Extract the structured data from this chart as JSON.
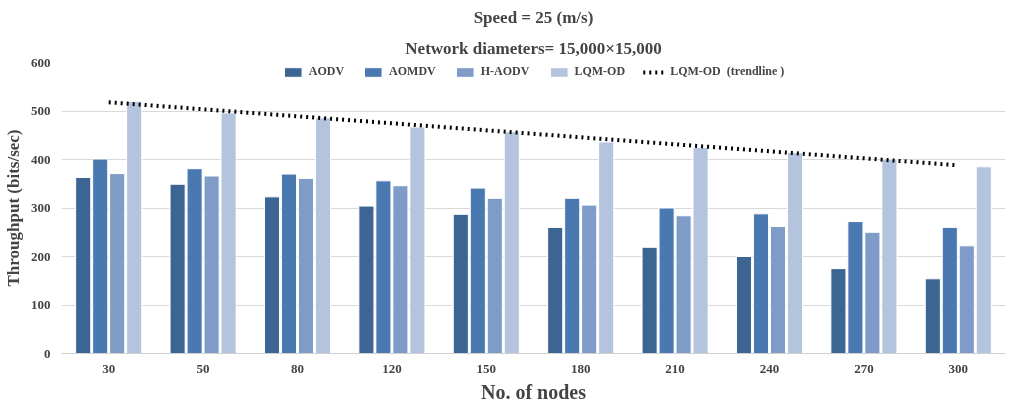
{
  "chart_data": {
    "type": "bar",
    "title": "Speed = 25 (m/s)",
    "subtitle": "Network diameters= 15,000×15,000",
    "xlabel": "No. of nodes",
    "ylabel": "Throughput (bits/sec)",
    "categories": [
      "30",
      "50",
      "80",
      "120",
      "150",
      "180",
      "210",
      "240",
      "270",
      "300"
    ],
    "series": [
      {
        "name": "AODV",
        "color": "#3d6594",
        "values": [
          363,
          349,
          323,
          304,
          287,
          260,
          219,
          200,
          175,
          154
        ]
      },
      {
        "name": "AOMDV",
        "color": "#4a78b0",
        "values": [
          401,
          381,
          370,
          356,
          341,
          320,
          300,
          288,
          272,
          260
        ]
      },
      {
        "name": "H-AODV",
        "color": "#7f9cc8",
        "values": [
          371,
          366,
          361,
          346,
          320,
          306,
          284,
          262,
          250,
          222
        ]
      },
      {
        "name": "LQM-OD",
        "color": "#b4c3de",
        "values": [
          520,
          496,
          486,
          467,
          457,
          436,
          425,
          414,
          401,
          385
        ]
      },
      {
        "name": "LQM-OD  (trendline )",
        "type": "line",
        "color": "#000000",
        "line_style": "dotted",
        "x": [
          "30",
          "300"
        ],
        "values": [
          518,
          388
        ]
      }
    ],
    "ylim": [
      0,
      600
    ],
    "yticks": [
      0,
      100,
      200,
      300,
      400,
      500,
      600
    ],
    "grid": "y",
    "legend": "top"
  }
}
